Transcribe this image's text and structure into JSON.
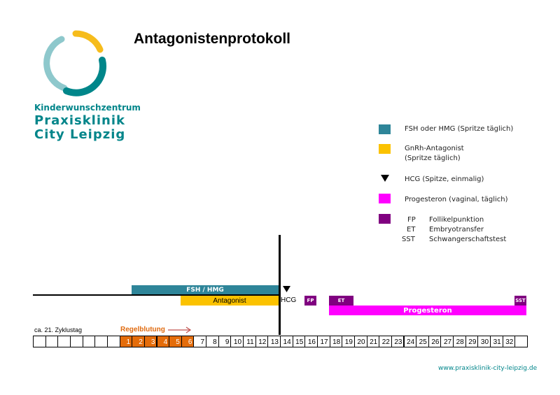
{
  "title": "Antagonistenprotokoll",
  "logo": {
    "line1": "Kinderwunschzentrum",
    "line2": "Praxisklinik",
    "line3": "City Leipzig",
    "colors": [
      "#8ec8cc",
      "#f6bc1c",
      "#00868a"
    ]
  },
  "legend": {
    "fsh": {
      "label": "FSH oder HMG (Spritze täglich)",
      "color": "#2e8599"
    },
    "gnrh": {
      "label1": "GnRh-Antagonist",
      "label2": "(Spritze täglich)",
      "color": "#fbc200"
    },
    "hcg": {
      "label": "HCG (Spitze, einmalig)",
      "icon": "triangle-down-icon"
    },
    "progesteron": {
      "label": "Progesteron (vaginal, täglich)",
      "color": "#ff00ff"
    },
    "events": {
      "color": "#800080",
      "items": [
        {
          "abbr": "FP",
          "label": "Follikelpunktion"
        },
        {
          "abbr": "ET",
          "label": "Embryotransfer"
        },
        {
          "abbr": "SST",
          "label": "Schwangerschaftstest"
        }
      ]
    }
  },
  "timeline": {
    "fsh_label": "FSH / HMG",
    "antagonist_label": "Antagonist",
    "hcg_label": "HCG",
    "fp_label": "FP",
    "et_label": "ET",
    "sst_label": "SST",
    "progesteron_label": "Progesteron",
    "start_label": "ca. 21. Zyklustag",
    "menses_label": "Regelblutung",
    "menses_color": "#e06b10",
    "cells": [
      "",
      "",
      "",
      "",
      "",
      "",
      "",
      "1",
      "2",
      "3",
      "4",
      "5",
      "6",
      "7",
      "8",
      "9",
      "10",
      "11",
      "12",
      "13",
      "14",
      "15",
      "16",
      "17",
      "18",
      "19",
      "20",
      "21",
      "22",
      "23",
      "24",
      "25",
      "26",
      "27",
      "28",
      "29",
      "30",
      "31",
      "32",
      ""
    ],
    "highlighted_days": [
      "1",
      "2",
      "3",
      "4",
      "5",
      "6"
    ]
  },
  "footer": {
    "url": "www.praxisklinik-city-leipzig.de"
  }
}
